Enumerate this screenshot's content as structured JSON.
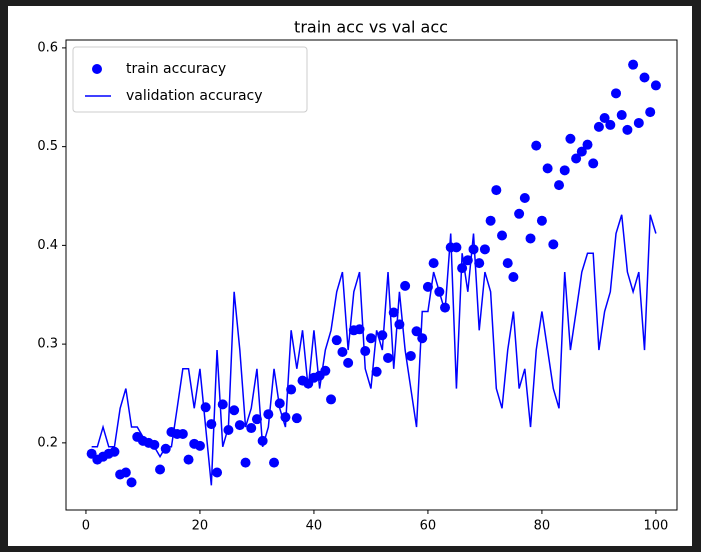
{
  "chart_data": {
    "type": "line",
    "title": "train acc vs val acc",
    "x": [
      1,
      2,
      3,
      4,
      5,
      6,
      7,
      8,
      9,
      10,
      11,
      12,
      13,
      14,
      15,
      16,
      17,
      18,
      19,
      20,
      21,
      22,
      23,
      24,
      25,
      26,
      27,
      28,
      29,
      30,
      31,
      32,
      33,
      34,
      35,
      36,
      37,
      38,
      39,
      40,
      41,
      42,
      43,
      44,
      45,
      46,
      47,
      48,
      49,
      50,
      51,
      52,
      53,
      54,
      55,
      56,
      57,
      58,
      59,
      60,
      61,
      62,
      63,
      64,
      65,
      66,
      67,
      68,
      69,
      70,
      71,
      72,
      73,
      74,
      75,
      76,
      77,
      78,
      79,
      80,
      81,
      82,
      83,
      84,
      85,
      86,
      87,
      88,
      89,
      90,
      91,
      92,
      93,
      94,
      95,
      96,
      97,
      98,
      99,
      100
    ],
    "series": [
      {
        "name": "train accuracy",
        "color": "#0000ff",
        "style": "markers",
        "values": [
          0.189,
          0.183,
          0.186,
          0.189,
          0.191,
          0.168,
          0.17,
          0.16,
          0.206,
          0.202,
          0.2,
          0.198,
          0.173,
          0.194,
          0.211,
          0.209,
          0.209,
          0.183,
          0.199,
          0.197,
          0.236,
          0.219,
          0.17,
          0.239,
          0.213,
          0.233,
          0.218,
          0.18,
          0.215,
          0.224,
          0.202,
          0.229,
          0.18,
          0.24,
          0.226,
          0.254,
          0.225,
          0.263,
          0.26,
          0.266,
          0.268,
          0.273,
          0.244,
          0.304,
          0.292,
          0.281,
          0.314,
          0.315,
          0.293,
          0.306,
          0.272,
          0.309,
          0.286,
          0.332,
          0.32,
          0.359,
          0.288,
          0.313,
          0.306,
          0.358,
          0.382,
          0.353,
          0.337,
          0.398,
          0.398,
          0.377,
          0.385,
          0.396,
          0.382,
          0.396,
          0.425,
          0.456,
          0.41,
          0.382,
          0.368,
          0.432,
          0.448,
          0.407,
          0.501,
          0.425,
          0.478,
          0.401,
          0.461,
          0.476,
          0.508,
          0.488,
          0.495,
          0.502,
          0.483,
          0.52,
          0.529,
          0.522,
          0.554,
          0.532,
          0.517,
          0.583,
          0.524,
          0.57,
          0.535,
          0.562
        ]
      },
      {
        "name": "validation accuracy",
        "color": "#0000ff",
        "style": "line",
        "values": [
          0.196,
          0.196,
          0.216,
          0.196,
          0.196,
          0.235,
          0.255,
          0.216,
          0.216,
          0.206,
          0.196,
          0.196,
          0.186,
          0.196,
          0.196,
          0.235,
          0.275,
          0.275,
          0.235,
          0.275,
          0.216,
          0.157,
          0.294,
          0.196,
          0.216,
          0.353,
          0.294,
          0.216,
          0.235,
          0.275,
          0.196,
          0.216,
          0.275,
          0.235,
          0.216,
          0.314,
          0.275,
          0.314,
          0.255,
          0.314,
          0.255,
          0.294,
          0.314,
          0.353,
          0.373,
          0.294,
          0.353,
          0.373,
          0.275,
          0.255,
          0.314,
          0.294,
          0.373,
          0.275,
          0.353,
          0.294,
          0.255,
          0.216,
          0.333,
          0.333,
          0.373,
          0.353,
          0.333,
          0.412,
          0.255,
          0.392,
          0.353,
          0.412,
          0.314,
          0.373,
          0.353,
          0.255,
          0.235,
          0.294,
          0.333,
          0.255,
          0.275,
          0.216,
          0.294,
          0.333,
          0.294,
          0.255,
          0.235,
          0.373,
          0.294,
          0.333,
          0.373,
          0.392,
          0.392,
          0.294,
          0.333,
          0.353,
          0.412,
          0.431,
          0.373,
          0.353,
          0.373,
          0.294,
          0.431,
          0.412
        ]
      }
    ],
    "xlim": [
      -3.5,
      103.7
    ],
    "xticks": [
      0,
      20,
      40,
      60,
      80,
      100
    ],
    "ylim": [
      0.132,
      0.608
    ],
    "yticks": [
      0.2,
      0.3,
      0.4,
      0.5,
      0.6
    ],
    "legend": "upper left"
  }
}
